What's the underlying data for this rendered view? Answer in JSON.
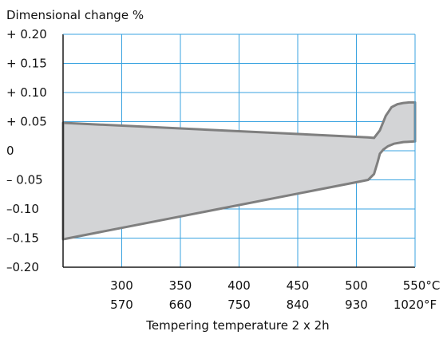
{
  "chart_data": {
    "type": "area",
    "title": "",
    "ylabel": "Dimensional change %",
    "xlabel": "Tempering temperature  2 x 2h",
    "xlim": [
      250,
      550
    ],
    "ylim": [
      -0.2,
      0.2
    ],
    "y_ticks": [
      0.2,
      0.15,
      0.1,
      0.05,
      0,
      -0.05,
      -0.1,
      -0.15,
      -0.2
    ],
    "y_tick_labels": [
      "+ 0.20",
      "+ 0.15",
      "+ 0.10",
      "+ 0.05",
      "0",
      "– 0.05",
      "–0.10",
      "–0.15",
      "–0.20"
    ],
    "x_ticks": [
      300,
      350,
      400,
      450,
      500,
      550
    ],
    "x_tick_labels_c": [
      "300",
      "350",
      "400",
      "450",
      "500",
      "550°C"
    ],
    "x_tick_labels_f": [
      "570",
      "660",
      "750",
      "840",
      "930",
      "1020°F"
    ],
    "grid": true,
    "series": [
      {
        "x": [
          250,
          510,
          515,
          520,
          525,
          530,
          535,
          540,
          545,
          550
        ],
        "values": [
          0.048,
          0.023,
          0.022,
          0.035,
          0.06,
          0.075,
          0.08,
          0.082,
          0.083,
          0.083
        ]
      },
      {
        "x": [
          250,
          505,
          510,
          515,
          518,
          520,
          523,
          527,
          532,
          540,
          550
        ],
        "values": [
          -0.152,
          -0.052,
          -0.05,
          -0.04,
          -0.02,
          -0.005,
          0.002,
          0.008,
          0.012,
          0.015,
          0.016
        ]
      }
    ],
    "colors": {
      "grid": "#3aa3e0",
      "line": "#7f7f7f",
      "fill": "#d3d4d6"
    }
  }
}
